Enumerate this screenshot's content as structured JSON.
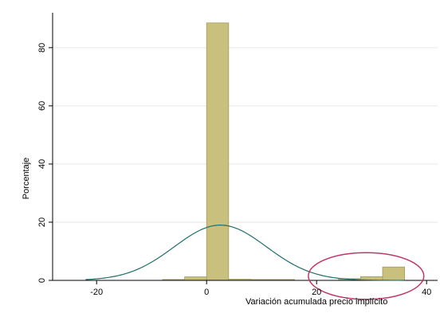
{
  "chart_data": {
    "type": "bar",
    "subtype": "histogram-with-normal-density",
    "xlabel": "Variación acumulada precio implícito",
    "ylabel": "Porcentaje",
    "xlim": [
      -28,
      42
    ],
    "ylim": [
      0,
      92
    ],
    "xticks": [
      -20,
      0,
      20,
      40
    ],
    "yticks": [
      0,
      20,
      40,
      60,
      80
    ],
    "grid": "horizontal",
    "bar_color": "#c8c07c",
    "bar_edge_color": "#a39c5e",
    "bins": [
      {
        "x0": -8,
        "x1": -4,
        "value": 0.3
      },
      {
        "x0": -4,
        "x1": 0,
        "value": 1.2
      },
      {
        "x0": 0,
        "x1": 4,
        "value": 88.5
      },
      {
        "x0": 4,
        "x1": 8,
        "value": 0.4
      },
      {
        "x0": 8,
        "x1": 12,
        "value": 0.3
      },
      {
        "x0": 12,
        "x1": 16,
        "value": 0.3
      },
      {
        "x0": 24,
        "x1": 28,
        "value": 0.6
      },
      {
        "x0": 28,
        "x1": 32,
        "value": 1.3
      },
      {
        "x0": 32,
        "x1": 36,
        "value": 4.6
      }
    ],
    "density_curve": {
      "color": "#1e6f6a",
      "mean": 2.5,
      "sd": 8.4,
      "peak": 19,
      "x_range": [
        -22,
        36
      ]
    },
    "annotation": {
      "shape": "ellipse",
      "color": "#c0356a",
      "center_x": 29,
      "center_y": 1.5,
      "radius_x": 10.5,
      "radius_y": 8
    }
  }
}
